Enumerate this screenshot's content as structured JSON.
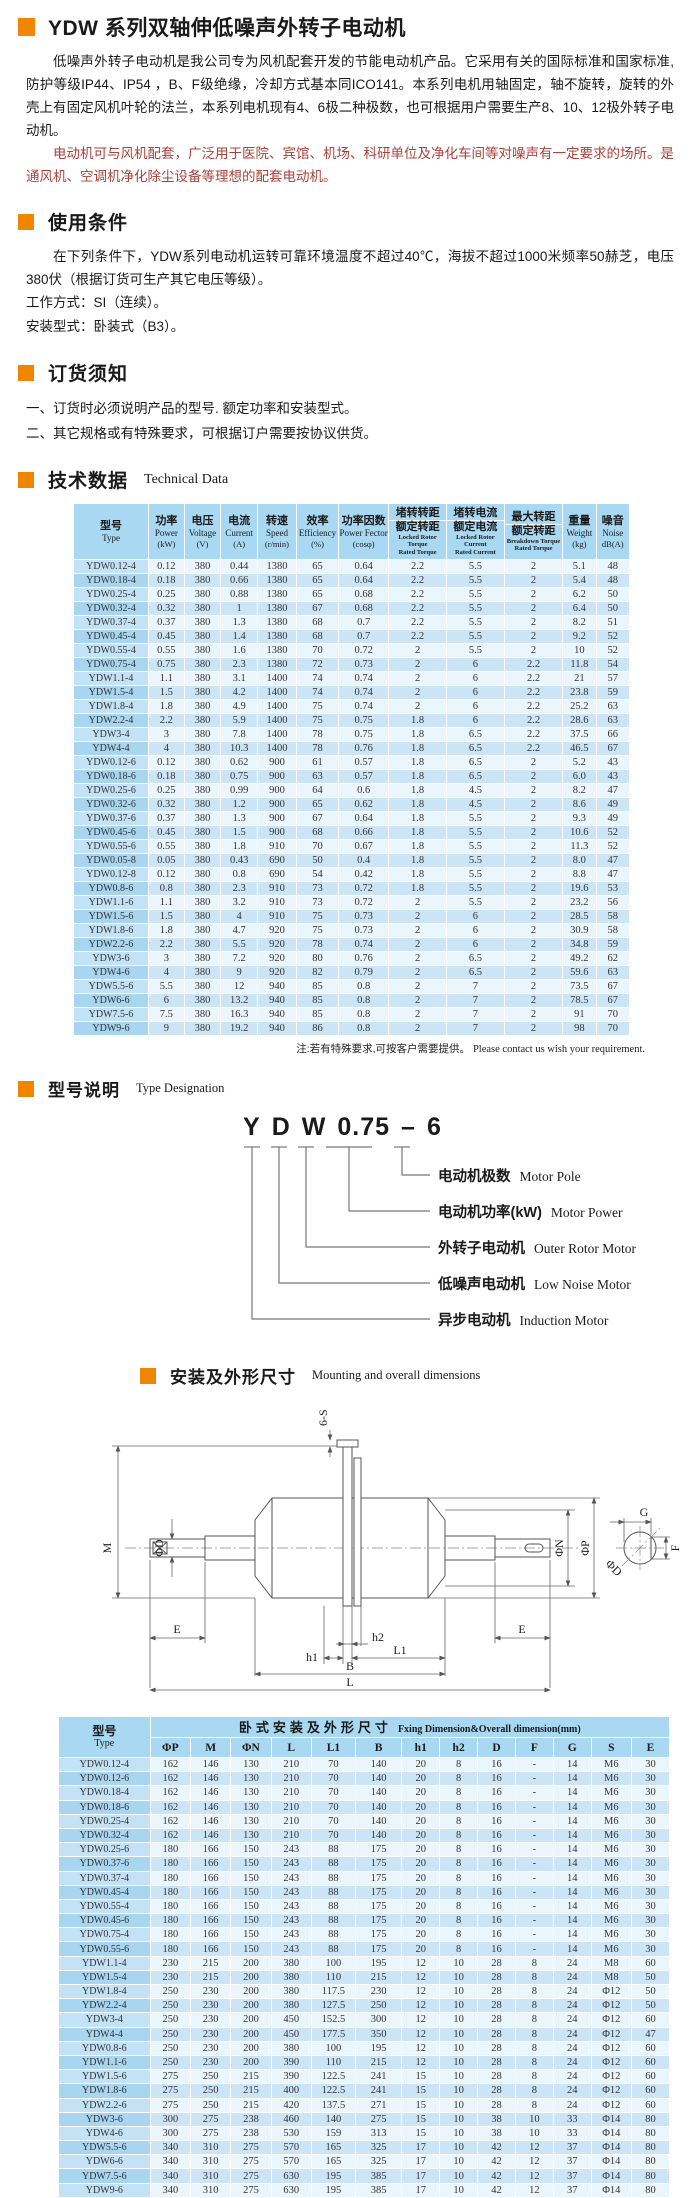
{
  "header": {
    "title": "YDW 系列双轴伸低噪声外转子电动机"
  },
  "intro": {
    "p1": "低噪声外转子电动机是我公司专为风机配套开发的节能电动机产品。它采用有关的国际标准和国家标准,防护等级IP44、IP54 ，B、F级绝缘，冷却方式基本同ICO141。本系列电机用轴固定，轴不旋转，旋转的外壳上有固定风机叶轮的法兰，本系列电机现有4、6极二种极数，也可根据用户需要生产8、10、12极外转子电动机。",
    "p2": "电动机可与风机配套，广泛用于医院、宾馆、机场、科研单位及净化车间等对噪声有一定要求的场所。是通风机、空调机净化除尘设备等理想的配套电动机。"
  },
  "usage": {
    "title": "使用条件",
    "p1": "在下列条件下，YDW系列电动机运转可靠环境温度不超过40℃，海拔不超过1000米频率50赫芝，电压380伏（根据订货可生产其它电压等级）。",
    "line2": "工作方式：SI（连续）。",
    "line3": "安装型式：卧装式（B3）。"
  },
  "ordering": {
    "title": "订货须知",
    "line1": "一、订货时必须说明产品的型号. 额定功率和安装型式。",
    "line2": "二、其它规格或有特殊要求，可根据订户需要按协议供货。"
  },
  "technical": {
    "title": "技术数据",
    "subtitle": "Technical Data"
  },
  "tech_table": {
    "headers": [
      {
        "cn": "型号",
        "en": "Type"
      },
      {
        "cn": "功率",
        "en": "Power",
        "unit": "(kW)"
      },
      {
        "cn": "电压",
        "en": "Voltage",
        "unit": "(V)"
      },
      {
        "cn": "电流",
        "en": "Current",
        "unit": "(A)"
      },
      {
        "cn": "转速",
        "en": "Speed",
        "unit": "(r/min)"
      },
      {
        "cn": "效率",
        "en": "Efficiency",
        "unit": "(%)"
      },
      {
        "cn": "功率因数",
        "en": "Power Fector",
        "unit": "(cosφ)"
      },
      {
        "cn": "堵转转距",
        "cn2": "额定转距",
        "en": "Locked Rotor Torque",
        "en2": "Rated Torque"
      },
      {
        "cn": "堵转电流",
        "cn2": "额定电流",
        "en": "Locked Rotor Current",
        "en2": "Rated Current"
      },
      {
        "cn": "最大转距",
        "cn2": "额定转距",
        "en": "Breakdown Torque",
        "en2": "Rated Torque"
      },
      {
        "cn": "重量",
        "en": "Weight",
        "unit": "(kg)"
      },
      {
        "cn": "噪音",
        "en": "Noise",
        "unit": "dB(A)"
      }
    ],
    "rows": [
      [
        "YDW0.12-4",
        "0.12",
        "380",
        "0.44",
        "1380",
        "65",
        "0.64",
        "2.2",
        "5.5",
        "2",
        "5.1",
        "48"
      ],
      [
        "YDW0.18-4",
        "0.18",
        "380",
        "0.66",
        "1380",
        "65",
        "0.64",
        "2.2",
        "5.5",
        "2",
        "5.4",
        "48"
      ],
      [
        "YDW0.25-4",
        "0.25",
        "380",
        "0.88",
        "1380",
        "65",
        "0.68",
        "2.2",
        "5.5",
        "2",
        "6.2",
        "50"
      ],
      [
        "YDW0.32-4",
        "0.32",
        "380",
        "1",
        "1380",
        "67",
        "0.68",
        "2.2",
        "5.5",
        "2",
        "6.4",
        "50"
      ],
      [
        "YDW0.37-4",
        "0.37",
        "380",
        "1.3",
        "1380",
        "68",
        "0.7",
        "2.2",
        "5.5",
        "2",
        "8.2",
        "51"
      ],
      [
        "YDW0.45-4",
        "0.45",
        "380",
        "1.4",
        "1380",
        "68",
        "0.7",
        "2.2",
        "5.5",
        "2",
        "9.2",
        "52"
      ],
      [
        "YDW0.55-4",
        "0.55",
        "380",
        "1.6",
        "1380",
        "70",
        "0.72",
        "2",
        "5.5",
        "2",
        "10",
        "52"
      ],
      [
        "YDW0.75-4",
        "0.75",
        "380",
        "2.3",
        "1380",
        "72",
        "0.73",
        "2",
        "6",
        "2.2",
        "11.8",
        "54"
      ],
      [
        "YDW1.1-4",
        "1.1",
        "380",
        "3.1",
        "1400",
        "74",
        "0.74",
        "2",
        "6",
        "2.2",
        "21",
        "57"
      ],
      [
        "YDW1.5-4",
        "1.5",
        "380",
        "4.2",
        "1400",
        "74",
        "0.74",
        "2",
        "6",
        "2.2",
        "23.8",
        "59"
      ],
      [
        "YDW1.8-4",
        "1.8",
        "380",
        "4.9",
        "1400",
        "75",
        "0.74",
        "2",
        "6",
        "2.2",
        "25.2",
        "63"
      ],
      [
        "YDW2.2-4",
        "2.2",
        "380",
        "5.9",
        "1400",
        "75",
        "0.75",
        "1.8",
        "6",
        "2.2",
        "28.6",
        "63"
      ],
      [
        "YDW3-4",
        "3",
        "380",
        "7.8",
        "1400",
        "78",
        "0.75",
        "1.8",
        "6.5",
        "2.2",
        "37.5",
        "66"
      ],
      [
        "YDW4-4",
        "4",
        "380",
        "10.3",
        "1400",
        "78",
        "0.76",
        "1.8",
        "6.5",
        "2.2",
        "46.5",
        "67"
      ],
      [
        "YDW0.12-6",
        "0.12",
        "380",
        "0.62",
        "900",
        "61",
        "0.57",
        "1.8",
        "6.5",
        "2",
        "5.2",
        "43"
      ],
      [
        "YDW0.18-6",
        "0.18",
        "380",
        "0.75",
        "900",
        "63",
        "0.57",
        "1.8",
        "6.5",
        "2",
        "6.0",
        "43"
      ],
      [
        "YDW0.25-6",
        "0.25",
        "380",
        "0.99",
        "900",
        "64",
        "0.6",
        "1.8",
        "4.5",
        "2",
        "8.2",
        "47"
      ],
      [
        "YDW0.32-6",
        "0.32",
        "380",
        "1.2",
        "900",
        "65",
        "0.62",
        "1.8",
        "4.5",
        "2",
        "8.6",
        "49"
      ],
      [
        "YDW0.37-6",
        "0.37",
        "380",
        "1.3",
        "900",
        "67",
        "0.64",
        "1.8",
        "5.5",
        "2",
        "9.3",
        "49"
      ],
      [
        "YDW0.45-6",
        "0.45",
        "380",
        "1.5",
        "900",
        "68",
        "0.66",
        "1.8",
        "5.5",
        "2",
        "10.6",
        "52"
      ],
      [
        "YDW0.55-6",
        "0.55",
        "380",
        "1.8",
        "910",
        "70",
        "0.67",
        "1.8",
        "5.5",
        "2",
        "11.3",
        "52"
      ],
      [
        "YDW0.05-8",
        "0.05",
        "380",
        "0.43",
        "690",
        "50",
        "0.4",
        "1.8",
        "5.5",
        "2",
        "8.0",
        "47"
      ],
      [
        "YDW0.12-8",
        "0.12",
        "380",
        "0.8",
        "690",
        "54",
        "0.42",
        "1.8",
        "5.5",
        "2",
        "8.8",
        "47"
      ],
      [
        "YDW0.8-6",
        "0.8",
        "380",
        "2.3",
        "910",
        "73",
        "0.72",
        "1.8",
        "5.5",
        "2",
        "19.6",
        "53"
      ],
      [
        "YDW1.1-6",
        "1.1",
        "380",
        "3.2",
        "910",
        "73",
        "0.72",
        "2",
        "5.5",
        "2",
        "23.2",
        "56"
      ],
      [
        "YDW1.5-6",
        "1.5",
        "380",
        "4",
        "910",
        "75",
        "0.73",
        "2",
        "6",
        "2",
        "28.5",
        "58"
      ],
      [
        "YDW1.8-6",
        "1.8",
        "380",
        "4.7",
        "920",
        "75",
        "0.73",
        "2",
        "6",
        "2",
        "30.9",
        "58"
      ],
      [
        "YDW2.2-6",
        "2.2",
        "380",
        "5.5",
        "920",
        "78",
        "0.74",
        "2",
        "6",
        "2",
        "34.8",
        "59"
      ],
      [
        "YDW3-6",
        "3",
        "380",
        "7.2",
        "920",
        "80",
        "0.76",
        "2",
        "6.5",
        "2",
        "49.2",
        "62"
      ],
      [
        "YDW4-6",
        "4",
        "380",
        "9",
        "920",
        "82",
        "0.79",
        "2",
        "6.5",
        "2",
        "59.6",
        "63"
      ],
      [
        "YDW5.5-6",
        "5.5",
        "380",
        "12",
        "940",
        "85",
        "0.8",
        "2",
        "7",
        "2",
        "73.5",
        "67"
      ],
      [
        "YDW6-6",
        "6",
        "380",
        "13.2",
        "940",
        "85",
        "0.8",
        "2",
        "7",
        "2",
        "78.5",
        "67"
      ],
      [
        "YDW7.5-6",
        "7.5",
        "380",
        "16.3",
        "940",
        "85",
        "0.8",
        "2",
        "7",
        "2",
        "91",
        "70"
      ],
      [
        "YDW9-6",
        "9",
        "380",
        "19.2",
        "940",
        "86",
        "0.8",
        "2",
        "7",
        "2",
        "98",
        "70"
      ]
    ],
    "note_cn": "注:若有特殊要求,可按客户需要提供。",
    "note_en": "Please contact us wish your requirement."
  },
  "type_designation": {
    "title": "型号说明",
    "subtitle": "Type Designation"
  },
  "type_diagram": {
    "model_parts": [
      "Y",
      "D",
      "W",
      "0.75",
      "–",
      "6"
    ],
    "labels": [
      {
        "cn": "电动机极数",
        "en": "Motor Pole"
      },
      {
        "cn": "电动机功率(kW)",
        "en": "Motor  Power"
      },
      {
        "cn": "外转子电动机",
        "en": "Outer Rotor Motor"
      },
      {
        "cn": "低噪声电动机",
        "en": "Low Noise Motor"
      },
      {
        "cn": "异步电动机",
        "en": "Induction Motor"
      }
    ]
  },
  "mounting": {
    "title": "安装及外形尺寸",
    "subtitle": "Mounting and overall dimensions"
  },
  "drawing": {
    "labels": {
      "six_s": "6-S",
      "m": "M",
      "phi_d": "ΦD",
      "e_left": "E",
      "e_right": "E",
      "phi_n": "ΦN",
      "phi_p": "ΦP",
      "h1": "h1",
      "h2": "h2",
      "l1": "L1",
      "b": "B",
      "l": "L",
      "g": "G",
      "f": "F",
      "phi_d2": "ΦD"
    }
  },
  "dim_table": {
    "type_cn": "型号",
    "type_en": "Type",
    "group_cn": "卧式安装及外形尺寸",
    "group_en": "Fxing Dimension&Overall dimension(mm)",
    "columns": [
      "ΦP",
      "M",
      "ΦN",
      "L",
      "L1",
      "B",
      "h1",
      "h2",
      "D",
      "F",
      "G",
      "S",
      "E"
    ],
    "rows": [
      [
        "YDW0.12-4",
        "162",
        "146",
        "130",
        "210",
        "70",
        "140",
        "20",
        "8",
        "16",
        "-",
        "14",
        "M6",
        "30"
      ],
      [
        "YDW0.12-6",
        "162",
        "146",
        "130",
        "210",
        "70",
        "140",
        "20",
        "8",
        "16",
        "-",
        "14",
        "M6",
        "30"
      ],
      [
        "YDW0.18-4",
        "162",
        "146",
        "130",
        "210",
        "70",
        "140",
        "20",
        "8",
        "16",
        "-",
        "14",
        "M6",
        "30"
      ],
      [
        "YDW0.18-6",
        "162",
        "146",
        "130",
        "210",
        "70",
        "140",
        "20",
        "8",
        "16",
        "-",
        "14",
        "M6",
        "30"
      ],
      [
        "YDW0.25-4",
        "162",
        "146",
        "130",
        "210",
        "70",
        "140",
        "20",
        "8",
        "16",
        "-",
        "14",
        "M6",
        "30"
      ],
      [
        "YDW0.32-4",
        "162",
        "146",
        "130",
        "210",
        "70",
        "140",
        "20",
        "8",
        "16",
        "-",
        "14",
        "M6",
        "30"
      ],
      [
        "YDW0.25-6",
        "180",
        "166",
        "150",
        "243",
        "88",
        "175",
        "20",
        "8",
        "16",
        "-",
        "14",
        "M6",
        "30"
      ],
      [
        "YDW0.37-6",
        "180",
        "166",
        "150",
        "243",
        "88",
        "175",
        "20",
        "8",
        "16",
        "-",
        "14",
        "M6",
        "30"
      ],
      [
        "YDW0.37-4",
        "180",
        "166",
        "150",
        "243",
        "88",
        "175",
        "20",
        "8",
        "16",
        "-",
        "14",
        "M6",
        "30"
      ],
      [
        "YDW0.45-4",
        "180",
        "166",
        "150",
        "243",
        "88",
        "175",
        "20",
        "8",
        "16",
        "-",
        "14",
        "M6",
        "30"
      ],
      [
        "YDW0.55-4",
        "180",
        "166",
        "150",
        "243",
        "88",
        "175",
        "20",
        "8",
        "16",
        "-",
        "14",
        "M6",
        "30"
      ],
      [
        "YDW0.45-6",
        "180",
        "166",
        "150",
        "243",
        "88",
        "175",
        "20",
        "8",
        "16",
        "-",
        "14",
        "M6",
        "30"
      ],
      [
        "YDW0.75-4",
        "180",
        "166",
        "150",
        "243",
        "88",
        "175",
        "20",
        "8",
        "16",
        "-",
        "14",
        "M6",
        "30"
      ],
      [
        "YDW0.55-6",
        "180",
        "166",
        "150",
        "243",
        "88",
        "175",
        "20",
        "8",
        "16",
        "-",
        "14",
        "M6",
        "30"
      ],
      [
        "YDW1.1-4",
        "230",
        "215",
        "200",
        "380",
        "100",
        "195",
        "12",
        "10",
        "28",
        "8",
        "24",
        "M8",
        "60"
      ],
      [
        "YDW1.5-4",
        "230",
        "215",
        "200",
        "380",
        "110",
        "215",
        "12",
        "10",
        "28",
        "8",
        "24",
        "M8",
        "50"
      ],
      [
        "YDW1.8-4",
        "250",
        "230",
        "200",
        "380",
        "117.5",
        "230",
        "12",
        "10",
        "28",
        "8",
        "24",
        "Φ12",
        "50"
      ],
      [
        "YDW2.2-4",
        "250",
        "230",
        "200",
        "380",
        "127.5",
        "250",
        "12",
        "10",
        "28",
        "8",
        "24",
        "Φ12",
        "50"
      ],
      [
        "YDW3-4",
        "250",
        "230",
        "200",
        "450",
        "152.5",
        "300",
        "12",
        "10",
        "28",
        "8",
        "24",
        "Φ12",
        "60"
      ],
      [
        "YDW4-4",
        "250",
        "230",
        "200",
        "450",
        "177.5",
        "350",
        "12",
        "10",
        "28",
        "8",
        "24",
        "Φ12",
        "47"
      ],
      [
        "YDW0.8-6",
        "250",
        "230",
        "200",
        "380",
        "100",
        "195",
        "12",
        "10",
        "28",
        "8",
        "24",
        "Φ12",
        "60"
      ],
      [
        "YDW1.1-6",
        "250",
        "230",
        "200",
        "390",
        "110",
        "215",
        "12",
        "10",
        "28",
        "8",
        "24",
        "Φ12",
        "60"
      ],
      [
        "YDW1.5-6",
        "275",
        "250",
        "215",
        "390",
        "122.5",
        "241",
        "15",
        "10",
        "28",
        "8",
        "24",
        "Φ12",
        "60"
      ],
      [
        "YDW1.8-6",
        "275",
        "250",
        "215",
        "400",
        "122.5",
        "241",
        "15",
        "10",
        "28",
        "8",
        "24",
        "Φ12",
        "60"
      ],
      [
        "YDW2.2-6",
        "275",
        "250",
        "215",
        "420",
        "137.5",
        "271",
        "15",
        "10",
        "28",
        "8",
        "24",
        "Φ12",
        "60"
      ],
      [
        "YDW3-6",
        "300",
        "275",
        "238",
        "460",
        "140",
        "275",
        "15",
        "10",
        "38",
        "10",
        "33",
        "Φ14",
        "80"
      ],
      [
        "YDW4-6",
        "300",
        "275",
        "238",
        "530",
        "159",
        "313",
        "15",
        "10",
        "38",
        "10",
        "33",
        "Φ14",
        "80"
      ],
      [
        "YDW5.5-6",
        "340",
        "310",
        "275",
        "570",
        "165",
        "325",
        "17",
        "10",
        "42",
        "12",
        "37",
        "Φ14",
        "80"
      ],
      [
        "YDW6-6",
        "340",
        "310",
        "275",
        "570",
        "165",
        "325",
        "17",
        "10",
        "42",
        "12",
        "37",
        "Φ14",
        "80"
      ],
      [
        "YDW7.5-6",
        "340",
        "310",
        "275",
        "630",
        "195",
        "385",
        "17",
        "10",
        "42",
        "12",
        "37",
        "Φ14",
        "80"
      ],
      [
        "YDW9-6",
        "340",
        "310",
        "275",
        "630",
        "195",
        "385",
        "17",
        "10",
        "42",
        "12",
        "37",
        "Φ14",
        "80"
      ]
    ]
  }
}
